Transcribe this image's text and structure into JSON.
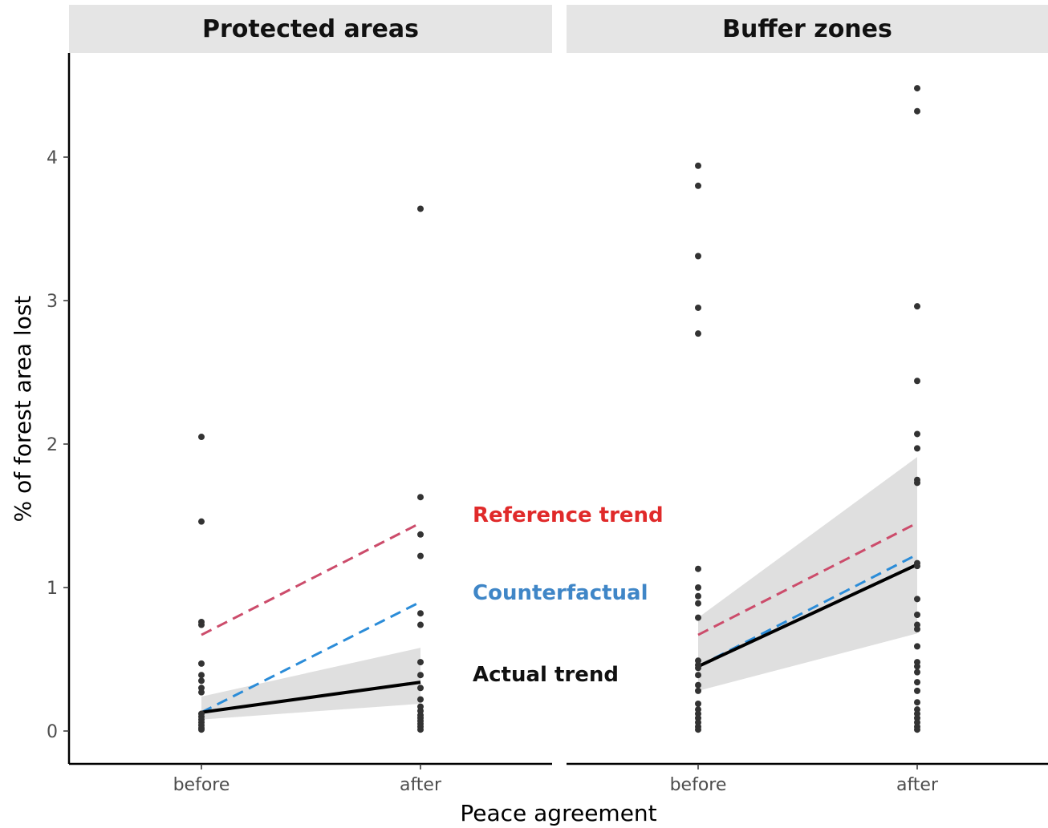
{
  "chart_data": {
    "type": "scatter",
    "xlabel": "Peace agreement",
    "ylabel": "% of forest area lost",
    "categories": [
      "before",
      "after"
    ],
    "ylim": [
      -0.22,
      4.7
    ],
    "yticks": [
      0,
      1,
      2,
      3,
      4
    ],
    "grid": false,
    "colors": {
      "points": "#333333",
      "actual": "#000000",
      "reference": "#cc4c6b",
      "counterfactual": "#2b8cd8",
      "ribbon": "#d9d9d9",
      "strip": "#e5e5e5"
    },
    "annotations": [
      {
        "text": "Reference trend",
        "color": "#e02a2a"
      },
      {
        "text": "Counterfactual",
        "color": "#3f86c7"
      },
      {
        "text": "Actual trend",
        "color": "#111111"
      }
    ],
    "panels": [
      {
        "title": "Protected areas",
        "points": {
          "before": [
            2.05,
            1.46,
            0.76,
            0.74,
            0.47,
            0.39,
            0.35,
            0.3,
            0.27,
            0.12,
            0.1,
            0.08,
            0.06,
            0.04,
            0.02,
            0.01
          ],
          "after": [
            3.64,
            1.63,
            1.37,
            1.22,
            0.82,
            0.74,
            0.48,
            0.39,
            0.3,
            0.22,
            0.17,
            0.14,
            0.11,
            0.09,
            0.07,
            0.05,
            0.03,
            0.01
          ]
        },
        "actual_trend": [
          0.13,
          0.34
        ],
        "ci_lower": [
          0.08,
          0.19
        ],
        "ci_upper": [
          0.24,
          0.58
        ],
        "reference_trend": [
          0.67,
          1.45
        ],
        "counterfactual": [
          0.13,
          0.9
        ]
      },
      {
        "title": "Buffer zones",
        "points": {
          "before": [
            3.94,
            3.8,
            3.31,
            2.95,
            2.77,
            1.13,
            1.0,
            0.94,
            0.89,
            0.79,
            0.49,
            0.46,
            0.44,
            0.39,
            0.32,
            0.28,
            0.19,
            0.15,
            0.12,
            0.09,
            0.06,
            0.03,
            0.01
          ],
          "after": [
            4.48,
            4.32,
            2.96,
            2.44,
            2.07,
            1.97,
            1.75,
            1.73,
            1.17,
            1.15,
            0.92,
            0.81,
            0.74,
            0.71,
            0.59,
            0.48,
            0.45,
            0.41,
            0.34,
            0.28,
            0.2,
            0.15,
            0.12,
            0.09,
            0.06,
            0.03,
            0.01
          ]
        },
        "actual_trend": [
          0.45,
          1.16
        ],
        "ci_lower": [
          0.28,
          0.68
        ],
        "ci_upper": [
          0.79,
          1.91
        ],
        "reference_trend": [
          0.67,
          1.45
        ],
        "counterfactual": [
          0.45,
          1.23
        ]
      }
    ]
  }
}
